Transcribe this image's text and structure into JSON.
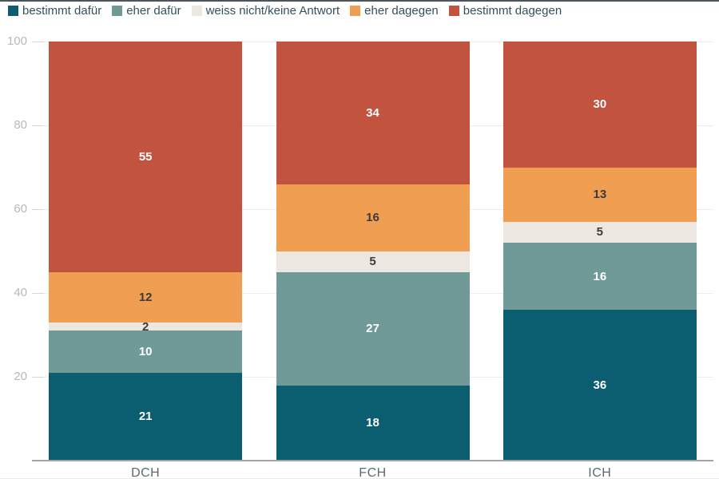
{
  "chart_data": {
    "type": "bar",
    "stacked": true,
    "orientation": "vertical",
    "title": "",
    "categories": [
      "DCH",
      "FCH",
      "ICH"
    ],
    "series": [
      {
        "name": "bestimmt dafür",
        "color": "#0b5e70",
        "label_color": "#ffffff",
        "values": [
          21,
          18,
          36
        ]
      },
      {
        "name": "eher dafür",
        "color": "#6f9a97",
        "label_color": "#ffffff",
        "values": [
          10,
          27,
          16
        ]
      },
      {
        "name": "weiss nicht/keine Antwort",
        "color": "#ece8e1",
        "label_color": "#3b3b3b",
        "values": [
          2,
          5,
          5
        ]
      },
      {
        "name": "eher dagegen",
        "color": "#f09e52",
        "label_color": "#3b3b3b",
        "values": [
          12,
          16,
          13
        ]
      },
      {
        "name": "bestimmt dagegen",
        "color": "#c2533f",
        "label_color": "#ffffff",
        "values": [
          55,
          34,
          30
        ]
      }
    ],
    "xlabel": "",
    "ylabel": "",
    "ylim": [
      0,
      100
    ],
    "yticks": [
      20,
      40,
      60,
      80,
      100
    ],
    "grid": true,
    "legend_position": "top",
    "colors": {
      "grid_line": "#ededed",
      "axis_line": "#a3a3a3",
      "tick_label": "#b6b9bb",
      "category_label": "#5c6a72",
      "legend_text": "#34505e",
      "top_border": "#4d565e"
    }
  }
}
